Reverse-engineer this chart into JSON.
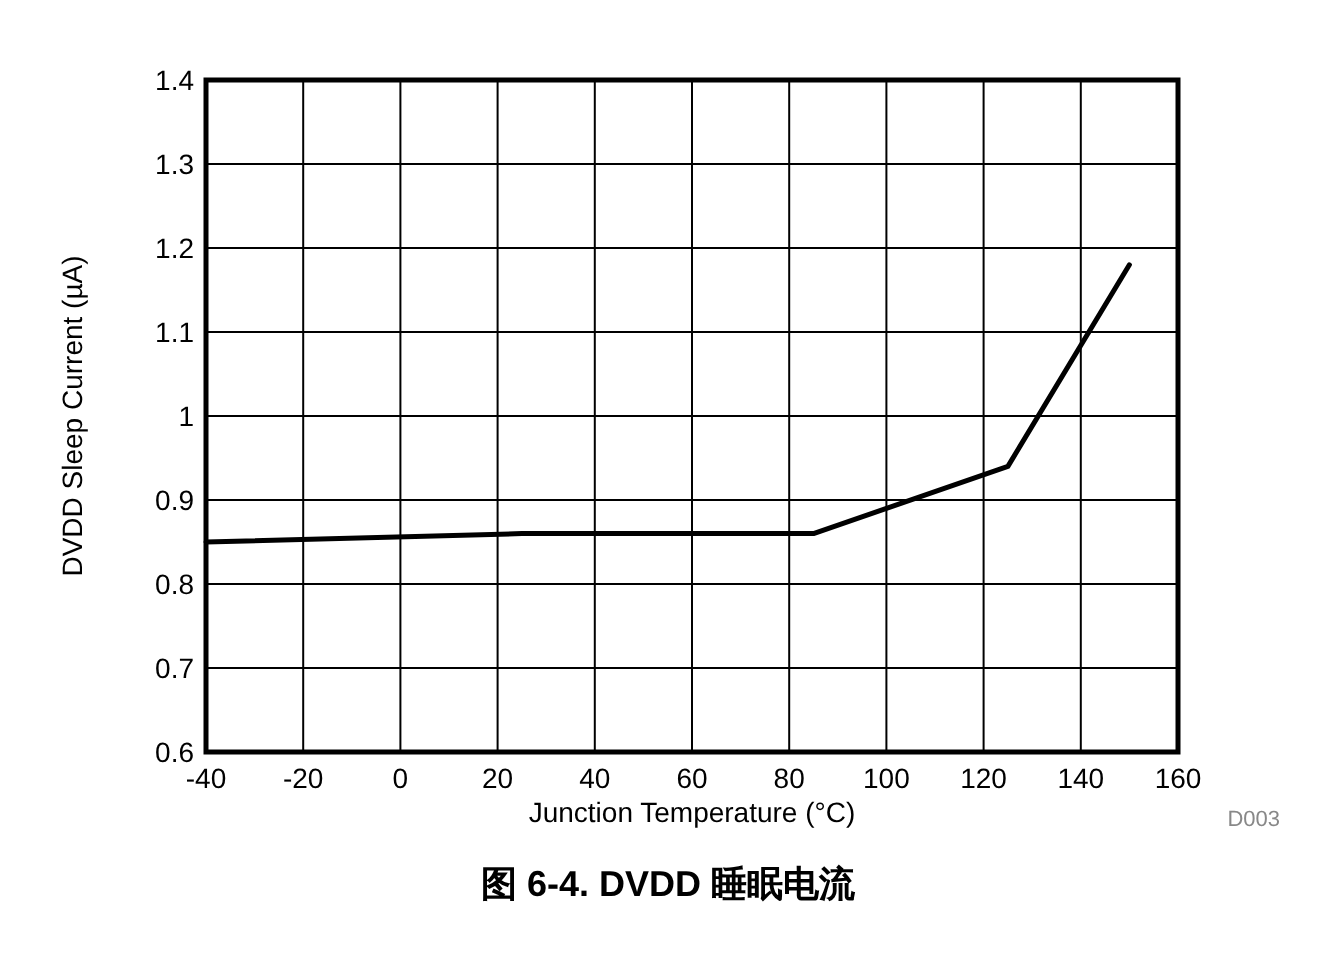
{
  "chart_data": {
    "type": "line",
    "title": "图 6-4. DVDD 睡眠电流",
    "xlabel": "Junction Temperature (°C)",
    "ylabel": "DVDD Sleep Current (µA)",
    "x": [
      -40,
      25,
      85,
      125,
      150
    ],
    "values": [
      0.85,
      0.86,
      0.86,
      0.94,
      1.18
    ],
    "color": "#000000",
    "xlim": [
      -40,
      160
    ],
    "ylim": [
      0.6,
      1.4
    ],
    "xticks": [
      -40,
      -20,
      0,
      20,
      40,
      60,
      80,
      100,
      120,
      140,
      160
    ],
    "yticks": [
      0.6,
      0.7,
      0.8,
      0.9,
      1,
      1.1,
      1.2,
      1.3,
      1.4
    ],
    "grid": true,
    "annotations": [
      "D003"
    ]
  }
}
